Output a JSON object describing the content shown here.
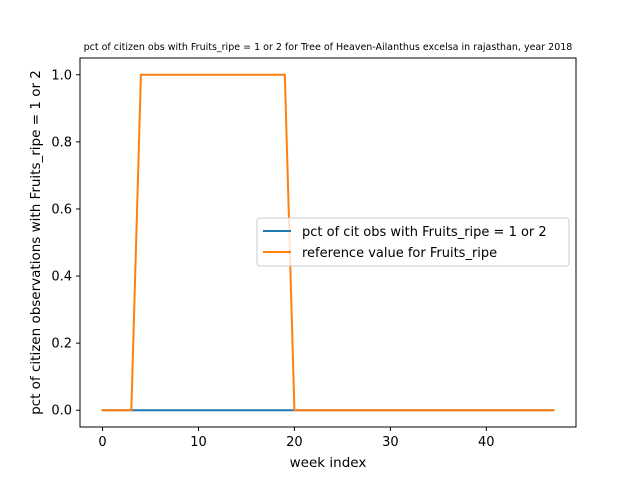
{
  "chart_data": {
    "type": "line",
    "title": "pct of citizen obs with Fruits_ripe = 1 or 2 for Tree of Heaven-Ailanthus excelsa in rajasthan, year 2018",
    "xlabel": "week index",
    "ylabel": "pct of citizen observations with Fruits_ripe = 1 or 2",
    "xlim": [
      -2.35,
      49.35
    ],
    "ylim": [
      -0.05,
      1.05
    ],
    "xticks": [
      0,
      10,
      20,
      30,
      40
    ],
    "xtick_labels": [
      "0",
      "10",
      "20",
      "30",
      "40"
    ],
    "yticks": [
      0.0,
      0.2,
      0.4,
      0.6,
      0.8,
      1.0
    ],
    "ytick_labels": [
      "0.0",
      "0.2",
      "0.4",
      "0.6",
      "0.8",
      "1.0"
    ],
    "grid": false,
    "legend_position": "center-right",
    "series": [
      {
        "name": "pct of cit obs with Fruits_ripe = 1 or 2",
        "color": "#1f77b4",
        "x": [
          0,
          47
        ],
        "y": [
          0,
          0
        ]
      },
      {
        "name": "reference value for Fruits_ripe",
        "color": "#ff7f0e",
        "x": [
          0,
          1,
          2,
          3,
          4,
          5,
          6,
          7,
          8,
          9,
          10,
          11,
          12,
          13,
          14,
          15,
          16,
          17,
          18,
          19,
          20,
          21,
          22,
          23,
          24,
          25,
          26,
          27,
          28,
          29,
          30,
          31,
          32,
          33,
          34,
          35,
          36,
          37,
          38,
          39,
          40,
          41,
          42,
          43,
          44,
          45,
          46,
          47
        ],
        "y": [
          0,
          0,
          0,
          0,
          1,
          1,
          1,
          1,
          1,
          1,
          1,
          1,
          1,
          1,
          1,
          1,
          1,
          1,
          1,
          1,
          0,
          0,
          0,
          0,
          0,
          0,
          0,
          0,
          0,
          0,
          0,
          0,
          0,
          0,
          0,
          0,
          0,
          0,
          0,
          0,
          0,
          0,
          0,
          0,
          0,
          0,
          0,
          0
        ]
      }
    ]
  }
}
